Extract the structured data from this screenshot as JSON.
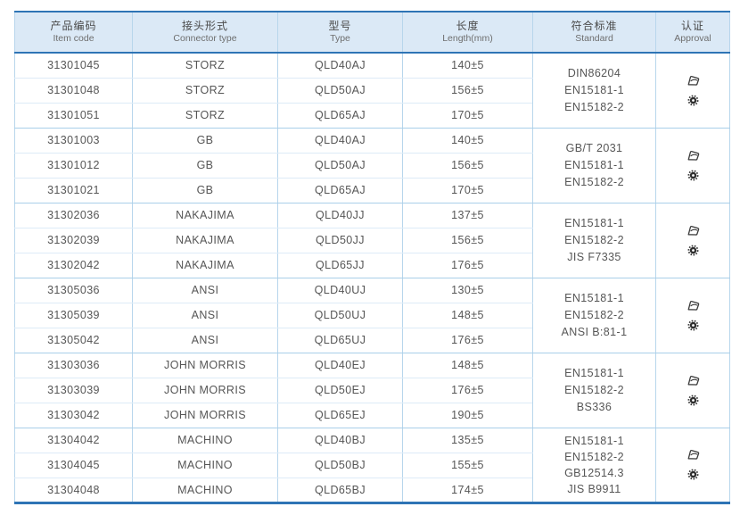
{
  "table": {
    "columns": [
      {
        "zh": "产品编码",
        "en": "Item code"
      },
      {
        "zh": "接头形式",
        "en": "Connector type"
      },
      {
        "zh": "型号",
        "en": "Type"
      },
      {
        "zh": "长度",
        "en": "Length(mm)"
      },
      {
        "zh": "符合标准",
        "en": "Standard"
      },
      {
        "zh": "认证",
        "en": "Approval"
      }
    ],
    "approval_icons": [
      "cert-logo-icon",
      "wheel-seal-icon"
    ],
    "colors": {
      "accent": "#2e74b5",
      "header_bg": "#dbe9f6",
      "grid_line": "#b8d6ec",
      "row_line": "#ddebf7",
      "group_line": "#a9cfe9",
      "text": "#565656",
      "icon": "#333333"
    },
    "groups": [
      {
        "rows": [
          {
            "item_code": "31301045",
            "connector_type": "STORZ",
            "type": "QLD40AJ",
            "length": "140±5"
          },
          {
            "item_code": "31301048",
            "connector_type": "STORZ",
            "type": "QLD50AJ",
            "length": "156±5"
          },
          {
            "item_code": "31301051",
            "connector_type": "STORZ",
            "type": "QLD65AJ",
            "length": "170±5"
          }
        ],
        "standards": [
          "DIN86204",
          "EN15181-1",
          "EN15182-2"
        ]
      },
      {
        "rows": [
          {
            "item_code": "31301003",
            "connector_type": "GB",
            "type": "QLD40AJ",
            "length": "140±5"
          },
          {
            "item_code": "31301012",
            "connector_type": "GB",
            "type": "QLD50AJ",
            "length": "156±5"
          },
          {
            "item_code": "31301021",
            "connector_type": "GB",
            "type": "QLD65AJ",
            "length": "170±5"
          }
        ],
        "standards": [
          "GB/T 2031",
          "EN15181-1",
          "EN15182-2"
        ]
      },
      {
        "rows": [
          {
            "item_code": "31302036",
            "connector_type": "NAKAJIMA",
            "type": "QLD40JJ",
            "length": "137±5"
          },
          {
            "item_code": "31302039",
            "connector_type": "NAKAJIMA",
            "type": "QLD50JJ",
            "length": "156±5"
          },
          {
            "item_code": "31302042",
            "connector_type": "NAKAJIMA",
            "type": "QLD65JJ",
            "length": "176±5"
          }
        ],
        "standards": [
          "EN15181-1",
          "EN15182-2",
          "JIS F7335"
        ]
      },
      {
        "rows": [
          {
            "item_code": "31305036",
            "connector_type": "ANSI",
            "type": "QLD40UJ",
            "length": "130±5"
          },
          {
            "item_code": "31305039",
            "connector_type": "ANSI",
            "type": "QLD50UJ",
            "length": "148±5"
          },
          {
            "item_code": "31305042",
            "connector_type": "ANSI",
            "type": "QLD65UJ",
            "length": "176±5"
          }
        ],
        "standards": [
          "EN15181-1",
          "EN15182-2",
          "ANSI B:81-1"
        ]
      },
      {
        "rows": [
          {
            "item_code": "31303036",
            "connector_type": "JOHN MORRIS",
            "type": "QLD40EJ",
            "length": "148±5"
          },
          {
            "item_code": "31303039",
            "connector_type": "JOHN MORRIS",
            "type": "QLD50EJ",
            "length": "176±5"
          },
          {
            "item_code": "31303042",
            "connector_type": "JOHN MORRIS",
            "type": "QLD65EJ",
            "length": "190±5"
          }
        ],
        "standards": [
          "EN15181-1",
          "EN15182-2",
          "BS336"
        ]
      },
      {
        "rows": [
          {
            "item_code": "31304042",
            "connector_type": "MACHINO",
            "type": "QLD40BJ",
            "length": "135±5"
          },
          {
            "item_code": "31304045",
            "connector_type": "MACHINO",
            "type": "QLD50BJ",
            "length": "155±5"
          },
          {
            "item_code": "31304048",
            "connector_type": "MACHINO",
            "type": "QLD65BJ",
            "length": "174±5"
          }
        ],
        "standards": [
          "EN15181-1",
          "EN15182-2",
          "GB12514.3",
          "JIS B9911"
        ]
      }
    ]
  }
}
